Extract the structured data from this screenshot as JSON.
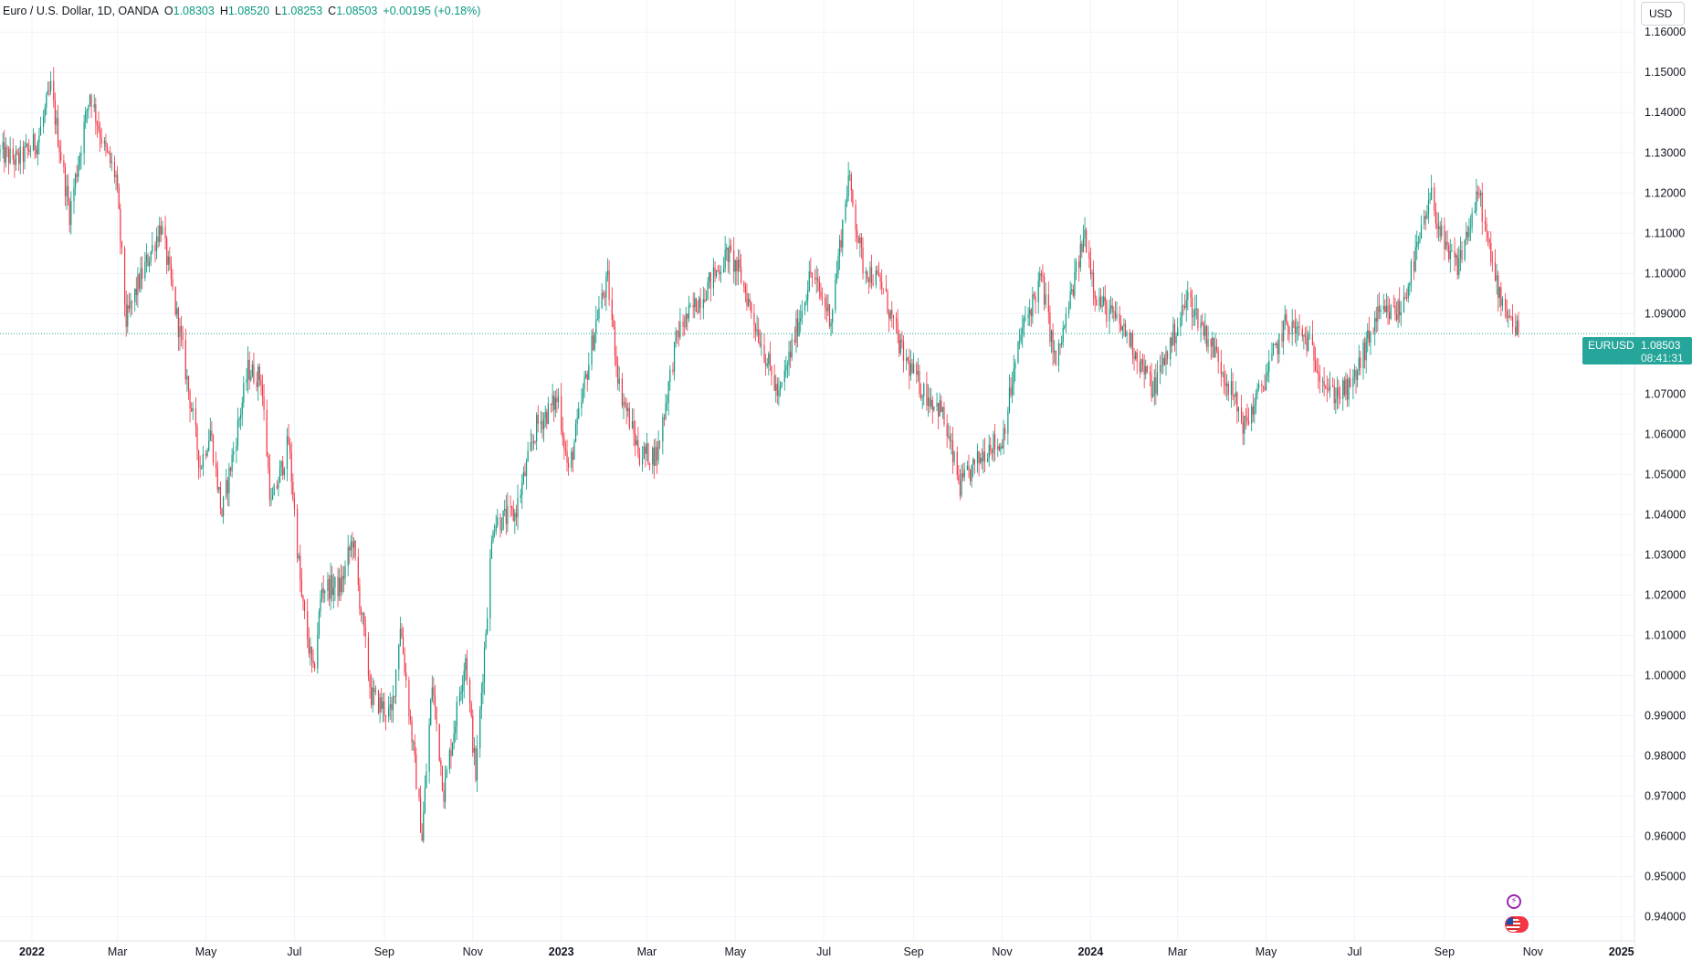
{
  "header": {
    "symbol_desc": "Euro / U.S. Dollar, 1D, OANDA",
    "o_label": "O",
    "o_value": "1.08303",
    "h_label": "H",
    "h_value": "1.08520",
    "l_label": "L",
    "l_value": "1.08253",
    "c_label": "C",
    "c_value": "1.08503",
    "change": "+0.00195 (+0.18%)"
  },
  "currency_button": "USD",
  "price_tag": {
    "symbol": "EURUSD",
    "price": "1.08503",
    "countdown": "08:41:31"
  },
  "event_icons": [
    "flash-icon",
    "us-flag-icon"
  ],
  "colors": {
    "up": "#089981",
    "down": "#f23645",
    "grid": "#f0f3fa",
    "axis_text": "#131722",
    "last_price": "#26a69a"
  },
  "chart_data": {
    "type": "candlestick",
    "symbol": "EURUSD",
    "interval": "1D",
    "source": "OANDA",
    "last_price": 1.08503,
    "y_range": [
      0.934,
      1.168
    ],
    "x_range": [
      "2021-12-10",
      "2025-01-10"
    ],
    "grid": true,
    "y_ticks": [
      "1.16000",
      "1.15000",
      "1.14000",
      "1.13000",
      "1.12000",
      "1.11000",
      "1.10000",
      "1.09000",
      "1.08000",
      "1.07000",
      "1.06000",
      "1.05000",
      "1.04000",
      "1.03000",
      "1.02000",
      "1.01000",
      "1.00000",
      "0.99000",
      "0.98000",
      "0.97000",
      "0.96000",
      "0.95000",
      "0.94000"
    ],
    "x_ticks": [
      {
        "label": "2022",
        "date": "2022-01-01"
      },
      {
        "label": "Mar",
        "date": "2022-03-01"
      },
      {
        "label": "May",
        "date": "2022-05-01"
      },
      {
        "label": "Jul",
        "date": "2022-07-01"
      },
      {
        "label": "Sep",
        "date": "2022-09-01"
      },
      {
        "label": "Nov",
        "date": "2022-11-01"
      },
      {
        "label": "2023",
        "date": "2023-01-01"
      },
      {
        "label": "Mar",
        "date": "2023-03-01"
      },
      {
        "label": "May",
        "date": "2023-05-01"
      },
      {
        "label": "Jul",
        "date": "2023-07-01"
      },
      {
        "label": "Sep",
        "date": "2023-09-01"
      },
      {
        "label": "Nov",
        "date": "2023-11-01"
      },
      {
        "label": "2024",
        "date": "2024-01-01"
      },
      {
        "label": "Mar",
        "date": "2024-03-01"
      },
      {
        "label": "May",
        "date": "2024-05-01"
      },
      {
        "label": "Jul",
        "date": "2024-07-01"
      },
      {
        "label": "Sep",
        "date": "2024-09-01"
      },
      {
        "label": "Nov",
        "date": "2024-11-01"
      },
      {
        "label": "2025",
        "date": "2025-01-01"
      }
    ],
    "close_path": [
      [
        "2021-12-10",
        1.13
      ],
      [
        "2021-12-22",
        1.128
      ],
      [
        "2022-01-05",
        1.133
      ],
      [
        "2022-01-14",
        1.146
      ],
      [
        "2022-01-27",
        1.115
      ],
      [
        "2022-02-10",
        1.145
      ],
      [
        "2022-02-20",
        1.131
      ],
      [
        "2022-02-28",
        1.124
      ],
      [
        "2022-03-07",
        1.088
      ],
      [
        "2022-03-15",
        1.097
      ],
      [
        "2022-03-31",
        1.112
      ],
      [
        "2022-04-14",
        1.083
      ],
      [
        "2022-04-27",
        1.052
      ],
      [
        "2022-05-04",
        1.061
      ],
      [
        "2022-05-12",
        1.04
      ],
      [
        "2022-05-30",
        1.076
      ],
      [
        "2022-06-08",
        1.074
      ],
      [
        "2022-06-15",
        1.042
      ],
      [
        "2022-06-27",
        1.058
      ],
      [
        "2022-07-06",
        1.019
      ],
      [
        "2022-07-14",
        1.0
      ],
      [
        "2022-07-20",
        1.022
      ],
      [
        "2022-08-02",
        1.022
      ],
      [
        "2022-08-10",
        1.034
      ],
      [
        "2022-08-23",
        0.995
      ],
      [
        "2022-09-06",
        0.99
      ],
      [
        "2022-09-12",
        1.013
      ],
      [
        "2022-09-27",
        0.96
      ],
      [
        "2022-10-04",
        0.998
      ],
      [
        "2022-10-12",
        0.971
      ],
      [
        "2022-10-27",
        1.005
      ],
      [
        "2022-11-03",
        0.975
      ],
      [
        "2022-11-15",
        1.038
      ],
      [
        "2022-11-30",
        1.04
      ],
      [
        "2022-12-15",
        1.062
      ],
      [
        "2022-12-30",
        1.069
      ],
      [
        "2023-01-06",
        1.05
      ],
      [
        "2023-01-26",
        1.09
      ],
      [
        "2023-02-02",
        1.098
      ],
      [
        "2023-02-10",
        1.072
      ],
      [
        "2023-02-24",
        1.055
      ],
      [
        "2023-03-08",
        1.055
      ],
      [
        "2023-03-22",
        1.085
      ],
      [
        "2023-04-05",
        1.093
      ],
      [
        "2023-04-26",
        1.105
      ],
      [
        "2023-05-04",
        1.1
      ],
      [
        "2023-05-31",
        1.069
      ],
      [
        "2023-06-22",
        1.1
      ],
      [
        "2023-07-06",
        1.089
      ],
      [
        "2023-07-18",
        1.124
      ],
      [
        "2023-07-28",
        1.102
      ],
      [
        "2023-08-10",
        1.097
      ],
      [
        "2023-08-24",
        1.08
      ],
      [
        "2023-09-07",
        1.071
      ],
      [
        "2023-09-20",
        1.066
      ],
      [
        "2023-10-03",
        1.047
      ],
      [
        "2023-10-13",
        1.052
      ],
      [
        "2023-10-24",
        1.058
      ],
      [
        "2023-10-31",
        1.057
      ],
      [
        "2023-11-14",
        1.085
      ],
      [
        "2023-11-28",
        1.099
      ],
      [
        "2023-12-08",
        1.077
      ],
      [
        "2023-12-28",
        1.11
      ],
      [
        "2024-01-05",
        1.094
      ],
      [
        "2024-01-26",
        1.085
      ],
      [
        "2024-02-13",
        1.071
      ],
      [
        "2024-03-08",
        1.094
      ],
      [
        "2024-03-29",
        1.079
      ],
      [
        "2024-04-16",
        1.062
      ],
      [
        "2024-04-26",
        1.07
      ],
      [
        "2024-05-15",
        1.088
      ],
      [
        "2024-05-30",
        1.083
      ],
      [
        "2024-06-14",
        1.07
      ],
      [
        "2024-06-28",
        1.071
      ],
      [
        "2024-07-16",
        1.089
      ],
      [
        "2024-08-02",
        1.091
      ],
      [
        "2024-08-23",
        1.119
      ],
      [
        "2024-09-02",
        1.105
      ],
      [
        "2024-09-10",
        1.102
      ],
      [
        "2024-09-25",
        1.12
      ],
      [
        "2024-10-03",
        1.103
      ],
      [
        "2024-10-10",
        1.094
      ],
      [
        "2024-10-22",
        1.08503
      ]
    ]
  }
}
